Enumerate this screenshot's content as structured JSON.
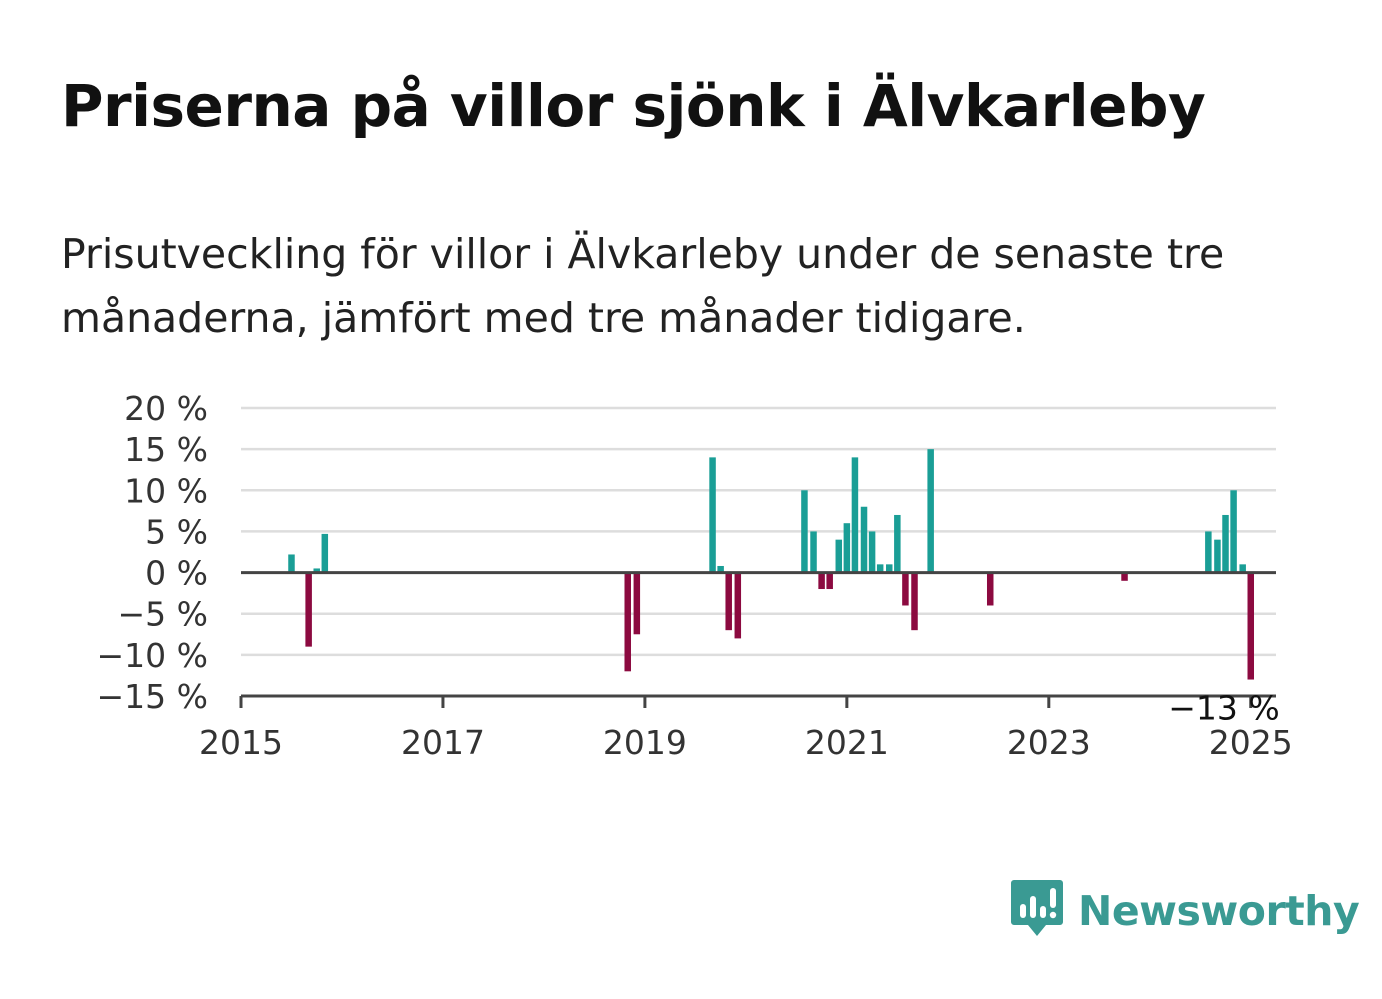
{
  "title": "Priserna på villor sjönk i Älvkarleby",
  "subtitle": "Prisutveckling för villor i Älvkarleby under de senaste tre månaderna, jämfört med tre månader tidigare.",
  "brand": {
    "name": "Newsworthy",
    "color": "#3a9a93",
    "icon": "newsworthy-bar-chart-logo-icon"
  },
  "colors": {
    "positive": "#1a9e96",
    "negative": "#8c0a40",
    "grid": "#dddddd",
    "axis": "#444444"
  },
  "chart_data": {
    "type": "bar",
    "title": "Priserna på villor sjönk i Älvkarleby",
    "xlabel": "",
    "ylabel": "",
    "x_range": [
      2015,
      2025.25
    ],
    "ylim": [
      -15,
      20
    ],
    "y_ticks": [
      20,
      15,
      10,
      5,
      0,
      -5,
      -10,
      -15
    ],
    "y_tick_labels": [
      "20 %",
      "15 %",
      "10 %",
      "5 %",
      "0 %",
      "−5 %",
      "−10 %",
      "−15 %"
    ],
    "x_ticks": [
      2015,
      2017,
      2019,
      2021,
      2023,
      2025
    ],
    "x_tick_labels": [
      "2015",
      "2017",
      "2019",
      "2021",
      "2023",
      "2025"
    ],
    "grid": true,
    "annotation": {
      "text": "−13 %",
      "x": 2024.92,
      "y": -13
    },
    "points": [
      {
        "x": 2015.5,
        "y": 2.2
      },
      {
        "x": 2015.67,
        "y": -9
      },
      {
        "x": 2015.75,
        "y": 0.5
      },
      {
        "x": 2015.83,
        "y": 4.7
      },
      {
        "x": 2018.83,
        "y": -12
      },
      {
        "x": 2018.92,
        "y": -7.5
      },
      {
        "x": 2019.67,
        "y": 14
      },
      {
        "x": 2019.75,
        "y": 0.8
      },
      {
        "x": 2019.83,
        "y": -7
      },
      {
        "x": 2019.92,
        "y": -8
      },
      {
        "x": 2020.58,
        "y": 10
      },
      {
        "x": 2020.67,
        "y": 5
      },
      {
        "x": 2020.75,
        "y": -2
      },
      {
        "x": 2020.83,
        "y": -2
      },
      {
        "x": 2020.92,
        "y": 4
      },
      {
        "x": 2021.0,
        "y": 6
      },
      {
        "x": 2021.08,
        "y": 14
      },
      {
        "x": 2021.17,
        "y": 8
      },
      {
        "x": 2021.25,
        "y": 5
      },
      {
        "x": 2021.33,
        "y": 1
      },
      {
        "x": 2021.42,
        "y": 1
      },
      {
        "x": 2021.5,
        "y": 7
      },
      {
        "x": 2021.58,
        "y": -4
      },
      {
        "x": 2021.67,
        "y": -7
      },
      {
        "x": 2021.83,
        "y": 15
      },
      {
        "x": 2022.42,
        "y": -4
      },
      {
        "x": 2023.75,
        "y": -1
      },
      {
        "x": 2024.58,
        "y": 5
      },
      {
        "x": 2024.67,
        "y": 4
      },
      {
        "x": 2024.75,
        "y": 7
      },
      {
        "x": 2024.83,
        "y": 10
      },
      {
        "x": 2024.92,
        "y": 1
      },
      {
        "x": 2025.0,
        "y": -13
      }
    ]
  }
}
